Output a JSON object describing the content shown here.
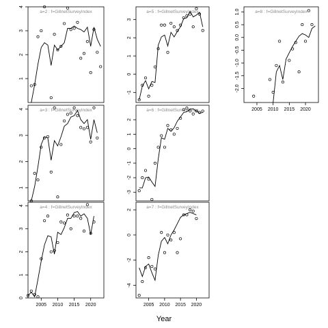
{
  "figure": {
    "xlabel": "Year"
  },
  "chart_data": [
    {
      "type": "scatter",
      "title": "a=2 : f=GillnetSurveyIndex",
      "xlim": [
        2001,
        2024
      ],
      "ylim": [
        0,
        4
      ],
      "yticks": [
        1,
        2,
        3,
        4
      ],
      "xticks": [],
      "points": [
        [
          2002,
          0.7
        ],
        [
          2003,
          0.75
        ],
        [
          2004,
          2.75
        ],
        [
          2005,
          3
        ],
        [
          2006,
          4
        ],
        [
          2008,
          0.2
        ],
        [
          2009,
          2.85
        ],
        [
          2010,
          2.2
        ],
        [
          2011,
          2.35
        ],
        [
          2012,
          3.3
        ],
        [
          2013,
          3.95
        ],
        [
          2014,
          3.05
        ],
        [
          2015,
          3.1
        ],
        [
          2016,
          3.35
        ],
        [
          2017,
          1.85
        ],
        [
          2018,
          2.05
        ],
        [
          2019,
          2.55
        ],
        [
          2020,
          1.25
        ],
        [
          2021,
          3.05
        ],
        [
          2022,
          2.1
        ],
        [
          2023,
          1.5
        ]
      ],
      "line": [
        [
          2002,
          0
        ],
        [
          2003,
          0.75
        ],
        [
          2004,
          1.6
        ],
        [
          2005,
          2.3
        ],
        [
          2006,
          2.5
        ],
        [
          2007,
          2.4
        ],
        [
          2008,
          1.55
        ],
        [
          2009,
          2.4
        ],
        [
          2010,
          2.2
        ],
        [
          2011,
          2.35
        ],
        [
          2012,
          2.5
        ],
        [
          2013,
          3.1
        ],
        [
          2014,
          3.1
        ],
        [
          2015,
          3.2
        ],
        [
          2016,
          3.1
        ],
        [
          2017,
          3.05
        ],
        [
          2018,
          2.95
        ],
        [
          2019,
          3.15
        ],
        [
          2020,
          2.35
        ],
        [
          2021,
          3.15
        ],
        [
          2022,
          2.65
        ],
        [
          2023,
          2.35
        ]
      ]
    },
    {
      "type": "scatter",
      "title": "a=5 : f=GillnetSurveyIndex",
      "xlim": [
        2001,
        2024
      ],
      "ylim": [
        -1.55,
        3.7
      ],
      "yticks": [
        -1,
        0,
        1,
        2,
        3
      ],
      "xticks": [],
      "points": [
        [
          2002,
          -1.4
        ],
        [
          2003,
          -0.6
        ],
        [
          2004,
          -0.2
        ],
        [
          2005,
          -1.2
        ],
        [
          2006,
          -0.6
        ],
        [
          2007,
          0.4
        ],
        [
          2008,
          1.4
        ],
        [
          2009,
          2.7
        ],
        [
          2010,
          2.7
        ],
        [
          2011,
          1.2
        ],
        [
          2012,
          2.8
        ],
        [
          2013,
          2.6
        ],
        [
          2014,
          2.4
        ],
        [
          2015,
          2.7
        ],
        [
          2016,
          3.1
        ],
        [
          2017,
          3.2
        ],
        [
          2018,
          3.3
        ],
        [
          2019,
          2.6
        ],
        [
          2020,
          3.6
        ],
        [
          2021,
          3.3
        ],
        [
          2022,
          2.4
        ]
      ],
      "line": [
        [
          2002,
          -1.4
        ],
        [
          2003,
          -0.65
        ],
        [
          2004,
          -0.35
        ],
        [
          2005,
          -0.8
        ],
        [
          2006,
          -0.4
        ],
        [
          2007,
          -0.45
        ],
        [
          2008,
          1.6
        ],
        [
          2009,
          2.05
        ],
        [
          2010,
          2.15
        ],
        [
          2011,
          1.55
        ],
        [
          2012,
          2.3
        ],
        [
          2013,
          2.05
        ],
        [
          2014,
          2.35
        ],
        [
          2015,
          2.6
        ],
        [
          2016,
          3.05
        ],
        [
          2017,
          3.1
        ],
        [
          2018,
          3.45
        ],
        [
          2019,
          3.15
        ],
        [
          2020,
          3.25
        ],
        [
          2021,
          3.4
        ],
        [
          2022,
          2.6
        ]
      ]
    },
    {
      "type": "scatter",
      "title": "a=8 : f=GillnetSurveyIndex",
      "xlim": [
        2001,
        2024
      ],
      "ylim": [
        -2.55,
        1.2
      ],
      "yticks": [
        -2.0,
        -1.5,
        -1.0,
        -0.5,
        0.0,
        0.5,
        1.0
      ],
      "xticks": [
        2005,
        2010,
        2015,
        2020
      ],
      "points": [
        [
          2004,
          -2.3
        ],
        [
          2009,
          -1.65
        ],
        [
          2010,
          -2.15
        ],
        [
          2011,
          -1.1
        ],
        [
          2012,
          -0.15
        ],
        [
          2013,
          -1.75
        ],
        [
          2015,
          -0.9
        ],
        [
          2016,
          -0.45
        ],
        [
          2017,
          -0.2
        ],
        [
          2018,
          -1.35
        ],
        [
          2019,
          0.5
        ],
        [
          2020,
          -0.15
        ],
        [
          2021,
          1.05
        ],
        [
          2022,
          0.5
        ]
      ],
      "line": [
        [
          2010,
          -2.55
        ],
        [
          2011,
          -1.35
        ],
        [
          2012,
          -1.1
        ],
        [
          2013,
          -1.65
        ],
        [
          2014,
          -0.85
        ],
        [
          2015,
          -0.6
        ],
        [
          2016,
          -0.35
        ],
        [
          2017,
          -0.15
        ],
        [
          2018,
          0.05
        ],
        [
          2019,
          0.15
        ],
        [
          2020,
          0.1
        ],
        [
          2021,
          0.0
        ],
        [
          2022,
          0.35
        ],
        [
          2023,
          0.45
        ]
      ]
    },
    {
      "type": "scatter",
      "title": "a=3 : f=GillnetSurveyIndex",
      "xlim": [
        2001,
        2024
      ],
      "ylim": [
        0.5,
        4.15
      ],
      "yticks": [
        1,
        2,
        3,
        4
      ],
      "xticks": [],
      "points": [
        [
          2002,
          0.5
        ],
        [
          2003,
          1.55
        ],
        [
          2004,
          1.3
        ],
        [
          2005,
          2.55
        ],
        [
          2006,
          2.9
        ],
        [
          2007,
          2.95
        ],
        [
          2008,
          1.6
        ],
        [
          2009,
          4.05
        ],
        [
          2010,
          0.65
        ],
        [
          2011,
          2.65
        ],
        [
          2012,
          3.55
        ],
        [
          2013,
          3.8
        ],
        [
          2014,
          3.85
        ],
        [
          2015,
          4.05
        ],
        [
          2016,
          3.75
        ],
        [
          2017,
          3.3
        ],
        [
          2018,
          3.25
        ],
        [
          2019,
          3.3
        ],
        [
          2020,
          2.75
        ],
        [
          2021,
          4.05
        ],
        [
          2022,
          2.9
        ]
      ],
      "line": [
        [
          2002,
          0.5
        ],
        [
          2003,
          1.05
        ],
        [
          2004,
          1.8
        ],
        [
          2005,
          2.65
        ],
        [
          2006,
          2.95
        ],
        [
          2007,
          2.9
        ],
        [
          2008,
          2.05
        ],
        [
          2009,
          2.8
        ],
        [
          2010,
          2.6
        ],
        [
          2011,
          2.95
        ],
        [
          2012,
          3.35
        ],
        [
          2013,
          3.45
        ],
        [
          2014,
          3.7
        ],
        [
          2015,
          3.75
        ],
        [
          2016,
          3.95
        ],
        [
          2017,
          3.6
        ],
        [
          2018,
          3.45
        ],
        [
          2019,
          3.6
        ],
        [
          2020,
          2.85
        ],
        [
          2021,
          3.6
        ],
        [
          2022,
          3.1
        ]
      ]
    },
    {
      "type": "scatter",
      "title": "a=6 : f=GillnetSurveyIndex",
      "xlim": [
        2001,
        2024
      ],
      "ylim": [
        -3.6,
        3.0
      ],
      "yticks": [
        -3,
        -2,
        -1,
        0,
        1,
        2
      ],
      "xticks": [],
      "points": [
        [
          2002,
          -2.9
        ],
        [
          2003,
          -2.0
        ],
        [
          2004,
          -1.5
        ],
        [
          2005,
          -2.1
        ],
        [
          2006,
          -3.5
        ],
        [
          2007,
          -1.0
        ],
        [
          2008,
          0.1
        ],
        [
          2009,
          0.9
        ],
        [
          2010,
          0.1
        ],
        [
          2011,
          1.6
        ],
        [
          2012,
          1.3
        ],
        [
          2013,
          1.0
        ],
        [
          2014,
          1.4
        ],
        [
          2015,
          2.1
        ],
        [
          2016,
          2.7
        ],
        [
          2017,
          2.8
        ],
        [
          2018,
          2.6
        ],
        [
          2019,
          2.4
        ],
        [
          2020,
          2.6
        ],
        [
          2021,
          2.5
        ],
        [
          2022,
          2.6
        ]
      ],
      "line": [
        [
          2002,
          -2.7
        ],
        [
          2003,
          -2.7
        ],
        [
          2004,
          -2.0
        ],
        [
          2005,
          -1.95
        ],
        [
          2006,
          -2.3
        ],
        [
          2007,
          -2.6
        ],
        [
          2008,
          -0.7
        ],
        [
          2009,
          0.75
        ],
        [
          2010,
          0.65
        ],
        [
          2011,
          1.4
        ],
        [
          2012,
          1.2
        ],
        [
          2013,
          1.45
        ],
        [
          2014,
          1.9
        ],
        [
          2015,
          2.2
        ],
        [
          2016,
          2.5
        ],
        [
          2017,
          2.55
        ],
        [
          2018,
          2.75
        ],
        [
          2019,
          2.75
        ],
        [
          2020,
          2.6
        ],
        [
          2021,
          2.45
        ],
        [
          2022,
          2.5
        ]
      ]
    },
    {
      "type": "scatter",
      "title": "a=4 : f=GillnetSurveyIndex",
      "xlim": [
        2001,
        2024
      ],
      "ylim": [
        0,
        4.15
      ],
      "yticks": [
        0,
        1,
        2,
        3,
        4
      ],
      "xticks": [
        2005,
        2010,
        2015,
        2020
      ],
      "points": [
        [
          2001,
          0.1
        ],
        [
          2002,
          0.3
        ],
        [
          2003,
          0.15
        ],
        [
          2004,
          0.05
        ],
        [
          2005,
          1.7
        ],
        [
          2006,
          3.35
        ],
        [
          2007,
          3.55
        ],
        [
          2008,
          2.0
        ],
        [
          2009,
          2.05
        ],
        [
          2010,
          2.4
        ],
        [
          2011,
          3.3
        ],
        [
          2012,
          3.25
        ],
        [
          2013,
          3.6
        ],
        [
          2014,
          3.0
        ],
        [
          2015,
          3.55
        ],
        [
          2016,
          3.55
        ],
        [
          2017,
          3.45
        ],
        [
          2018,
          2.9
        ],
        [
          2019,
          4.05
        ],
        [
          2020,
          2.8
        ],
        [
          2021,
          3.3
        ]
      ],
      "line": [
        [
          2001,
          0.1
        ],
        [
          2002,
          0.25
        ],
        [
          2003,
          0.05
        ],
        [
          2004,
          0.8
        ],
        [
          2005,
          1.6
        ],
        [
          2006,
          2.3
        ],
        [
          2007,
          2.7
        ],
        [
          2008,
          2.65
        ],
        [
          2009,
          1.9
        ],
        [
          2010,
          2.85
        ],
        [
          2011,
          2.75
        ],
        [
          2012,
          3.05
        ],
        [
          2013,
          3.45
        ],
        [
          2014,
          3.45
        ],
        [
          2015,
          3.7
        ],
        [
          2016,
          3.75
        ],
        [
          2017,
          3.55
        ],
        [
          2018,
          3.65
        ],
        [
          2019,
          3.45
        ],
        [
          2020,
          2.75
        ],
        [
          2021,
          3.55
        ]
      ]
    },
    {
      "type": "scatter",
      "title": "a=7 : f=GillnetSurveyIndex",
      "xlim": [
        2001,
        2024
      ],
      "ylim": [
        -5.0,
        2.6
      ],
      "yticks": [
        -4,
        -2,
        0,
        2
      ],
      "xticks": [
        2005,
        2010,
        2015,
        2020
      ],
      "points": [
        [
          2002,
          -4.8
        ],
        [
          2003,
          -3.7
        ],
        [
          2004,
          -2.6
        ],
        [
          2005,
          -1.8
        ],
        [
          2006,
          -2.5
        ],
        [
          2007,
          -2.7
        ],
        [
          2009,
          0.2
        ],
        [
          2010,
          -1.4
        ],
        [
          2011,
          0.0
        ],
        [
          2012,
          -0.4
        ],
        [
          2013,
          0.2
        ],
        [
          2014,
          -1.4
        ],
        [
          2015,
          -0.3
        ],
        [
          2016,
          1.6
        ],
        [
          2017,
          1.6
        ],
        [
          2018,
          2.0
        ],
        [
          2019,
          1.9
        ],
        [
          2020,
          1.3
        ]
      ],
      "line": [
        [
          2002,
          -2.6
        ],
        [
          2003,
          -3.3
        ],
        [
          2004,
          -2.5
        ],
        [
          2005,
          -2.3
        ],
        [
          2006,
          -3.0
        ],
        [
          2007,
          -3.6
        ],
        [
          2008,
          -1.6
        ],
        [
          2009,
          -0.5
        ],
        [
          2010,
          -0.2
        ],
        [
          2011,
          -0.7
        ],
        [
          2012,
          0.0
        ],
        [
          2013,
          0.4
        ],
        [
          2014,
          0.9
        ],
        [
          2015,
          1.4
        ],
        [
          2016,
          1.6
        ],
        [
          2017,
          1.7
        ],
        [
          2018,
          1.8
        ],
        [
          2019,
          1.7
        ],
        [
          2020,
          1.6
        ]
      ]
    }
  ]
}
